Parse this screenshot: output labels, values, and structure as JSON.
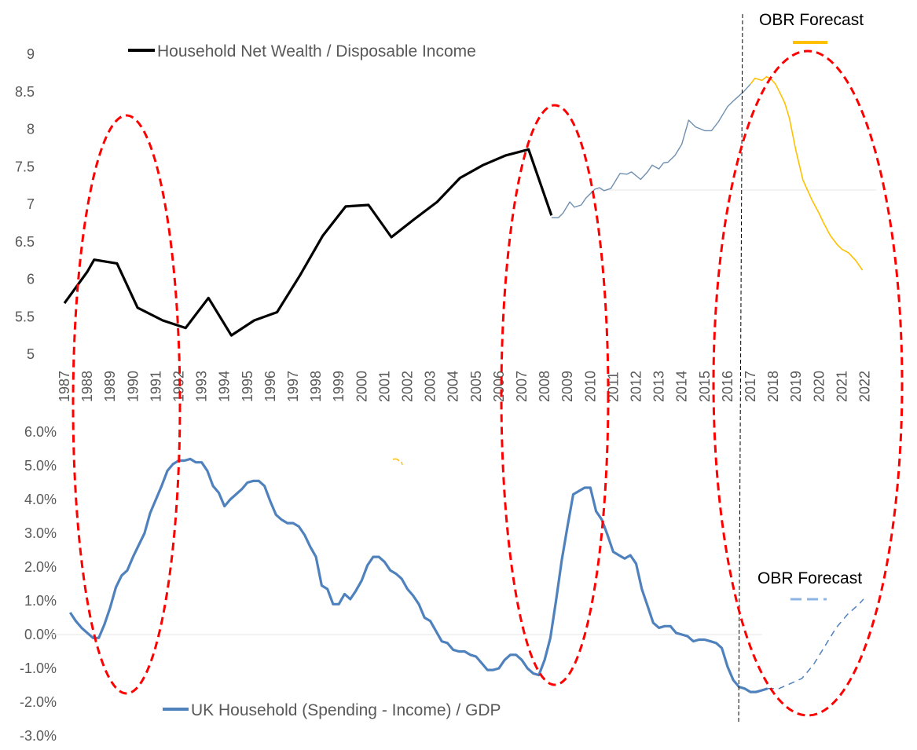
{
  "colors": {
    "wealth": "#000000",
    "wealth_recent": "#6f8fb0",
    "forecast": "#ffc000",
    "balance": "#4f81bd",
    "balance_forecast": "#8eb4e3",
    "ellipse": "#ff0000",
    "axis_text": "#595959"
  },
  "chart_data": [
    {
      "type": "line",
      "title": "",
      "legend": "top-left",
      "ylim": [
        5,
        9
      ],
      "yticks": [
        "5",
        "5.5",
        "6",
        "6.5",
        "7",
        "7.5",
        "8",
        "8.5",
        "9"
      ],
      "xlim": [
        1987,
        2022
      ],
      "xticks": [
        "1987",
        "1988",
        "1989",
        "1990",
        "1991",
        "1992",
        "1993",
        "1994",
        "1995",
        "1996",
        "1997",
        "1998",
        "1999",
        "2000",
        "2001",
        "2002",
        "2003",
        "2004",
        "2005",
        "2006",
        "2007",
        "2008",
        "2009",
        "2010",
        "2011",
        "2012",
        "2013",
        "2014",
        "2015",
        "2016",
        "2017",
        "2018",
        "2019",
        "2020",
        "2021",
        "2022"
      ],
      "series": [
        {
          "name": "Household Net Wealth / Disposable Income",
          "x": [
            1987,
            1988,
            1988.3,
            1989.3,
            1990.2,
            1991.3,
            1992.3,
            1993.3,
            1994.3,
            1995.3,
            1996.3,
            1997.3,
            1998.3,
            1999.3,
            2000.3,
            2001.3,
            2002.3,
            2003.3,
            2004.3,
            2005.3,
            2006.3,
            2007.3,
            2008.3
          ],
          "y": [
            5.68,
            6.1,
            6.26,
            6.21,
            5.62,
            5.45,
            5.35,
            5.75,
            5.25,
            5.45,
            5.56,
            6.05,
            6.58,
            6.97,
            6.99,
            6.56,
            6.8,
            7.03,
            7.35,
            7.52,
            7.65,
            7.73,
            6.85
          ]
        },
        {
          "name": "",
          "x": [
            2008.3,
            2008.6,
            2008.8,
            2009.1,
            2009.3,
            2009.6,
            2009.8,
            2010.2,
            2010.4,
            2010.6,
            2010.9,
            2011.3,
            2011.6,
            2011.8,
            2012.2,
            2012.5,
            2012.7,
            2013.0,
            2013.2,
            2013.4,
            2013.7,
            2014.0,
            2014.3,
            2014.6,
            2015.0,
            2015.3,
            2015.6,
            2016.0,
            2016.3,
            2016.7,
            2017.0
          ],
          "y": [
            6.82,
            6.82,
            6.88,
            7.03,
            6.96,
            6.99,
            7.08,
            7.2,
            7.22,
            7.18,
            7.21,
            7.41,
            7.4,
            7.43,
            7.33,
            7.43,
            7.52,
            7.47,
            7.55,
            7.56,
            7.65,
            7.8,
            8.12,
            8.03,
            7.98,
            7.98,
            8.1,
            8.3,
            8.39,
            8.5,
            8.6
          ]
        },
        {
          "name": "OBR Forecast",
          "x": [
            2017.0,
            2017.2,
            2017.5,
            2017.7,
            2017.9,
            2018.1,
            2018.3,
            2018.5,
            2018.7,
            2019.0,
            2019.3,
            2019.7,
            2020.0,
            2020.2,
            2020.5,
            2020.8,
            2021.0,
            2021.3,
            2021.6,
            2021.9
          ],
          "y": [
            8.6,
            8.68,
            8.65,
            8.7,
            8.67,
            8.6,
            8.48,
            8.35,
            8.15,
            7.7,
            7.32,
            7.05,
            6.88,
            6.75,
            6.58,
            6.46,
            6.4,
            6.35,
            6.25,
            6.12
          ]
        }
      ]
    },
    {
      "type": "line",
      "title": "",
      "legend": "bottom-left",
      "ylim": [
        -3.0,
        6.0
      ],
      "yticks": [
        "-3.0%",
        "-2.0%",
        "-1.0%",
        "0.0%",
        "1.0%",
        "2.0%",
        "3.0%",
        "4.0%",
        "5.0%",
        "6.0%"
      ],
      "xlim": [
        1987,
        2022
      ],
      "series": [
        {
          "name": "UK Household (Spending - Income) / GDP",
          "x": [
            1987.25,
            1987.5,
            1987.75,
            1988.0,
            1988.25,
            1988.5,
            1988.75,
            1989.0,
            1989.25,
            1989.5,
            1989.75,
            1990.0,
            1990.25,
            1990.5,
            1990.75,
            1991.0,
            1991.25,
            1991.5,
            1991.75,
            1992.0,
            1992.25,
            1992.5,
            1992.75,
            1993.0,
            1993.25,
            1993.5,
            1993.75,
            1994.0,
            1994.25,
            1994.5,
            1994.75,
            1995.0,
            1995.25,
            1995.5,
            1995.75,
            1996.0,
            1996.25,
            1996.5,
            1996.75,
            1997.0,
            1997.25,
            1997.5,
            1997.75,
            1998.0,
            1998.25,
            1998.5,
            1998.75,
            1999.0,
            1999.25,
            1999.5,
            1999.75,
            2000.0,
            2000.25,
            2000.5,
            2000.75,
            2001.0,
            2001.25,
            2001.5,
            2001.75,
            2002.0,
            2002.25,
            2002.5,
            2002.75,
            2003.0,
            2003.25,
            2003.5,
            2003.75,
            2004.0,
            2004.25,
            2004.5,
            2004.75,
            2005.0,
            2005.25,
            2005.5,
            2005.75,
            2006.0,
            2006.25,
            2006.5,
            2006.75,
            2007.0,
            2007.25,
            2007.5,
            2007.75,
            2008.0,
            2008.25,
            2008.5,
            2008.75,
            2009.0,
            2009.25,
            2009.5,
            2009.75,
            2010.0,
            2010.25,
            2010.5,
            2010.75,
            2011.0,
            2011.25,
            2011.5,
            2011.75,
            2012.0,
            2012.25,
            2012.5,
            2012.75,
            2013.0,
            2013.25,
            2013.5,
            2013.75,
            2014.0,
            2014.25,
            2014.5,
            2014.75,
            2015.0,
            2015.25,
            2015.5,
            2015.75,
            2016.0,
            2016.25,
            2016.5,
            2016.75,
            2017.0,
            2017.25,
            2017.5,
            2017.75
          ],
          "y": [
            0.65,
            0.4,
            0.2,
            0.05,
            -0.1,
            -0.1,
            0.3,
            0.8,
            1.4,
            1.75,
            1.9,
            2.3,
            2.65,
            3.0,
            3.6,
            4.0,
            4.4,
            4.85,
            5.05,
            5.15,
            5.15,
            5.2,
            5.1,
            5.1,
            4.85,
            4.4,
            4.2,
            3.8,
            4.0,
            4.15,
            4.3,
            4.5,
            4.55,
            4.55,
            4.4,
            3.95,
            3.55,
            3.4,
            3.3,
            3.3,
            3.2,
            2.95,
            2.6,
            2.3,
            1.45,
            1.35,
            0.9,
            0.9,
            1.2,
            1.05,
            1.3,
            1.6,
            2.05,
            2.3,
            2.3,
            2.15,
            1.9,
            1.8,
            1.65,
            1.35,
            1.15,
            0.9,
            0.5,
            0.4,
            0.1,
            -0.2,
            -0.25,
            -0.45,
            -0.5,
            -0.5,
            -0.6,
            -0.65,
            -0.85,
            -1.05,
            -1.05,
            -1.0,
            -0.75,
            -0.6,
            -0.6,
            -0.75,
            -1.0,
            -1.15,
            -1.2,
            -0.75,
            -0.1,
            1.0,
            2.2,
            3.2,
            4.15,
            4.25,
            4.35,
            4.35,
            3.65,
            3.4,
            2.95,
            2.45,
            2.35,
            2.25,
            2.35,
            2.1,
            1.35,
            0.85,
            0.35,
            0.2,
            0.25,
            0.25,
            0.05,
            0.0,
            -0.05,
            -0.2,
            -0.15,
            -0.15,
            -0.2,
            -0.25,
            -0.4,
            -0.95,
            -1.35,
            -1.55,
            -1.6,
            -1.7,
            -1.7,
            -1.65,
            -1.6
          ]
        },
        {
          "name": "OBR Forecast",
          "x": [
            2017.75,
            2018.25,
            2018.75,
            2019.25,
            2019.75,
            2020.25,
            2020.75,
            2021.25,
            2021.75,
            2021.95
          ],
          "y": [
            -1.6,
            -1.6,
            -1.45,
            -1.3,
            -0.9,
            -0.35,
            0.2,
            0.6,
            0.9,
            1.05
          ]
        }
      ]
    }
  ],
  "legend": {
    "wealth_label": "Household Net Wealth / Disposable Income",
    "balance_label": "UK Household (Spending - Income) / GDP",
    "obr_top_label": "OBR Forecast",
    "obr_bottom_label": "OBR Forecast"
  }
}
